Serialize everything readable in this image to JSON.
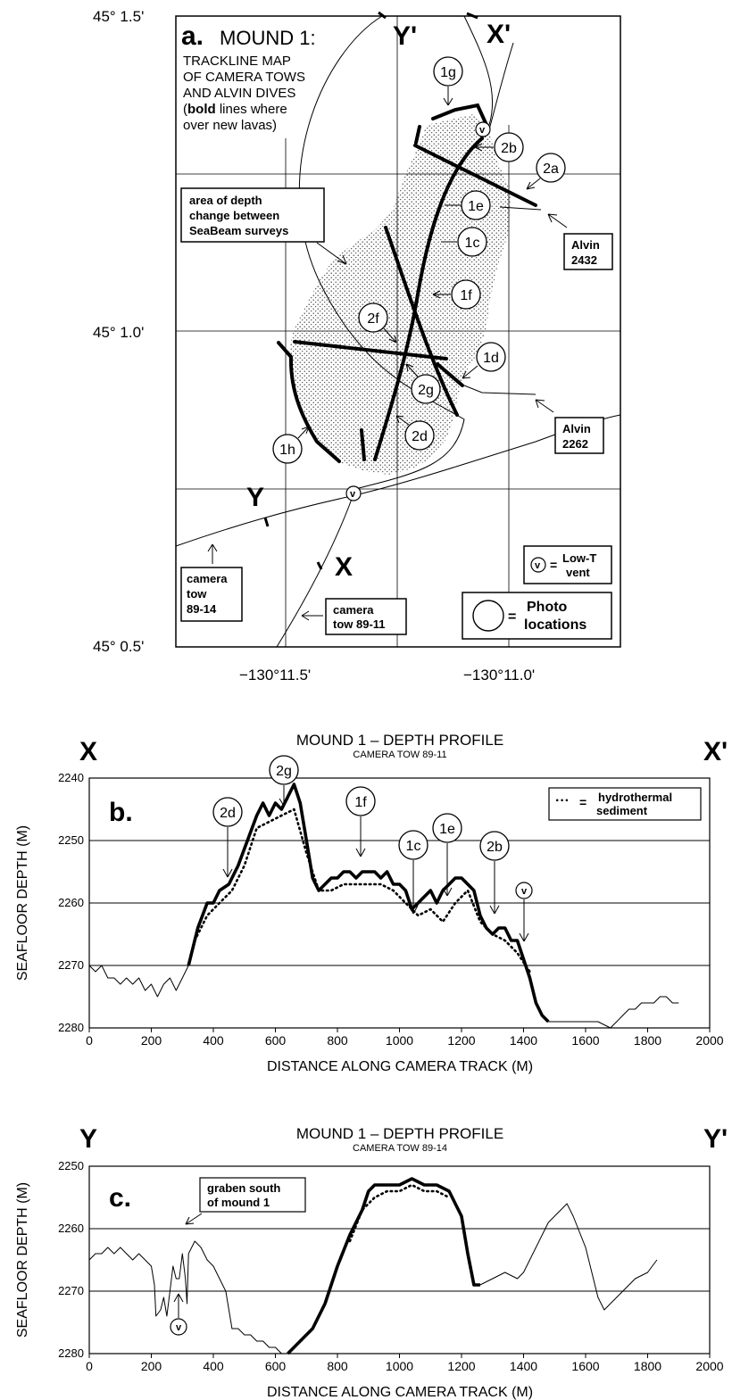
{
  "map": {
    "panel_letter": "a.",
    "title": "MOUND 1:",
    "subtitle_lines": [
      "TRACKLINE MAP",
      "OF CAMERA TOWS",
      "AND ALVIN DIVES"
    ],
    "bold_note_bold": "bold",
    "bold_note_rest": " lines where",
    "bold_note_line2": "over new lavas)",
    "bold_note_open": "(",
    "lat_labels": [
      "45° 1.5'",
      "45° 1.0'",
      "45° 0.5'"
    ],
    "lon_labels": [
      "−130°11.5'",
      "−130°11.0'"
    ],
    "area_box": [
      "area of depth",
      "change between",
      "SeaBeam surveys"
    ],
    "alvin_2432": [
      "Alvin",
      "2432"
    ],
    "alvin_2262": [
      "Alvin",
      "2262"
    ],
    "tow_89_14": [
      "camera",
      "tow",
      "89-14"
    ],
    "tow_89_11": [
      "camera",
      "tow  89-11"
    ],
    "vent_legend": [
      "Low-T",
      "vent"
    ],
    "vent_symbol": "v",
    "photo_legend": [
      "Photo",
      "locations"
    ],
    "equals": "=",
    "section_labels": [
      "Y'",
      "X'",
      "Y",
      "X"
    ],
    "photo_ids": [
      "1g",
      "2b",
      "2a",
      "1e",
      "1c",
      "1f",
      "2f",
      "1d",
      "2g",
      "2d",
      "1h"
    ]
  },
  "profile_b": {
    "title": "MOUND 1 – DEPTH PROFILE",
    "subtitle": "CAMERA TOW 89-11",
    "end_left": "X",
    "end_right": "X'",
    "panel_letter": "b.",
    "legend_text": [
      "hydrothermal",
      "sediment"
    ],
    "legend_symbol": "···",
    "legend_eq": "=",
    "photo_labels": [
      "2d",
      "2g",
      "1f",
      "1c",
      "1e",
      "2b",
      "v"
    ]
  },
  "profile_c": {
    "title": "MOUND 1 – DEPTH PROFILE",
    "subtitle": "CAMERA TOW 89-14",
    "end_left": "Y",
    "end_right": "Y'",
    "panel_letter": "c.",
    "annotation": [
      "graben south",
      "of mound 1"
    ],
    "vent_label": "v"
  },
  "chart_data": [
    {
      "type": "line",
      "title": "MOUND 1 – DEPTH PROFILE",
      "subtitle": "CAMERA TOW 89-11",
      "xlabel": "DISTANCE ALONG CAMERA TRACK (M)",
      "ylabel": "SEAFLOOR DEPTH (M)",
      "xlim": [
        0,
        2000
      ],
      "ylim": [
        2280,
        2240
      ],
      "xticks": [
        0,
        200,
        400,
        600,
        800,
        1000,
        1200,
        1400,
        1600,
        1800,
        2000
      ],
      "yticks": [
        2240,
        2250,
        2260,
        2270,
        2280
      ],
      "grid": "horizontal",
      "series": [
        {
          "style": "thin",
          "x": [
            0,
            20,
            40,
            60,
            80,
            100,
            120,
            140,
            160,
            180,
            200,
            220,
            240,
            260,
            280,
            300,
            320
          ],
          "y": [
            2270,
            2271,
            2270,
            2272,
            2272,
            2273,
            2272,
            2273,
            2272,
            2274,
            2273,
            2275,
            2273,
            2272,
            2274,
            2272,
            2270
          ]
        },
        {
          "style": "bold",
          "x": [
            320,
            350,
            380,
            400,
            420,
            450,
            480,
            510,
            540,
            560,
            580,
            600,
            620,
            640,
            660,
            680,
            700,
            720,
            740,
            760,
            780,
            800,
            820,
            840,
            860,
            880,
            900,
            920,
            940,
            960,
            980,
            1000,
            1020,
            1040,
            1060,
            1080,
            1100,
            1120,
            1140,
            1160,
            1180,
            1200,
            1220,
            1240,
            1260,
            1280,
            1300,
            1320,
            1340,
            1360,
            1380,
            1400,
            1420,
            1440,
            1460,
            1480
          ],
          "y": [
            2270,
            2264,
            2260,
            2260,
            2258,
            2257,
            2254,
            2250,
            2246,
            2244,
            2246,
            2244,
            2245,
            2243,
            2241,
            2244,
            2250,
            2256,
            2258,
            2257,
            2256,
            2256,
            2255,
            2255,
            2256,
            2255,
            2255,
            2255,
            2256,
            2255,
            2257,
            2257,
            2258,
            2261,
            2260,
            2259,
            2258,
            2260,
            2258,
            2257,
            2256,
            2256,
            2257,
            2258,
            2262,
            2264,
            2265,
            2264,
            2264,
            2266,
            2266,
            2269,
            2272,
            2276,
            2278,
            2279
          ]
        },
        {
          "style": "thin",
          "x": [
            1480,
            1520,
            1560,
            1600,
            1640,
            1680,
            1700,
            1720,
            1740,
            1760,
            1780,
            1800,
            1820,
            1840,
            1860,
            1880,
            1900
          ],
          "y": [
            2279,
            2279,
            2279,
            2279,
            2279,
            2280,
            2279,
            2278,
            2277,
            2277,
            2276,
            2276,
            2276,
            2275,
            2275,
            2276,
            2276
          ]
        },
        {
          "name": "hydrothermal sediment",
          "style": "dotted",
          "x": [
            340,
            380,
            420,
            460,
            500,
            540,
            580,
            620,
            660,
            700,
            740,
            780,
            820,
            860,
            900,
            940,
            980,
            1020,
            1060,
            1100,
            1140,
            1180,
            1220,
            1260,
            1300,
            1340,
            1380,
            1420
          ],
          "y": [
            2266,
            2262,
            2260,
            2258,
            2254,
            2248,
            2247,
            2246,
            2245,
            2252,
            2258,
            2258,
            2257,
            2257,
            2257,
            2257,
            2258,
            2260,
            2262,
            2261,
            2263,
            2260,
            2258,
            2263,
            2265,
            2266,
            2268,
            2271
          ]
        }
      ]
    },
    {
      "type": "line",
      "title": "MOUND 1 – DEPTH PROFILE",
      "subtitle": "CAMERA TOW 89-14",
      "xlabel": "DISTANCE ALONG CAMERA TRACK (M)",
      "ylabel": "SEAFLOOR DEPTH (M)",
      "xlim": [
        0,
        2000
      ],
      "ylim": [
        2280,
        2250
      ],
      "xticks": [
        0,
        200,
        400,
        600,
        800,
        1000,
        1200,
        1400,
        1600,
        1800,
        2000
      ],
      "yticks": [
        2250,
        2260,
        2270,
        2280
      ],
      "grid": "horizontal",
      "series": [
        {
          "style": "thin",
          "x": [
            0,
            20,
            40,
            60,
            80,
            100,
            120,
            140,
            160,
            180,
            200,
            210,
            215,
            230,
            240,
            250,
            260,
            270,
            280,
            290,
            300,
            310,
            315,
            320,
            340,
            360,
            380,
            400,
            420,
            440,
            460,
            480,
            500,
            520,
            540,
            560,
            580,
            600,
            620,
            640
          ],
          "y": [
            2265,
            2264,
            2264,
            2263,
            2264,
            2263,
            2264,
            2265,
            2264,
            2265,
            2266,
            2269,
            2274,
            2273,
            2271,
            2274,
            2270,
            2266,
            2268,
            2268,
            2264,
            2268,
            2272,
            2264,
            2262,
            2263,
            2265,
            2266,
            2268,
            2270,
            2276,
            2276,
            2277,
            2277,
            2278,
            2278,
            2279,
            2279,
            2280,
            2280
          ]
        },
        {
          "style": "bold",
          "x": [
            640,
            680,
            720,
            760,
            800,
            840,
            880,
            900,
            920,
            960,
            1000,
            1040,
            1080,
            1120,
            1160,
            1200,
            1220,
            1240,
            1260
          ],
          "y": [
            2280,
            2278,
            2276,
            2272,
            2266,
            2261,
            2257,
            2254,
            2253,
            2253,
            2253,
            2252,
            2253,
            2253,
            2254,
            2258,
            2264,
            2269,
            2269
          ]
        },
        {
          "style": "thin",
          "x": [
            1260,
            1300,
            1340,
            1380,
            1400,
            1440,
            1480,
            1520,
            1540,
            1560,
            1600,
            1640,
            1660,
            1680,
            1720,
            1760,
            1800,
            1830
          ],
          "y": [
            2269,
            2268,
            2267,
            2268,
            2267,
            2263,
            2259,
            2257,
            2256,
            2258,
            2263,
            2271,
            2273,
            2272,
            2270,
            2268,
            2267,
            2265
          ]
        },
        {
          "style": "dotted",
          "x": [
            840,
            880,
            920,
            960,
            1000,
            1040,
            1080,
            1120,
            1160
          ],
          "y": [
            2262,
            2257,
            2255,
            2254,
            2254,
            2253,
            2254,
            2254,
            2255
          ]
        }
      ]
    }
  ]
}
